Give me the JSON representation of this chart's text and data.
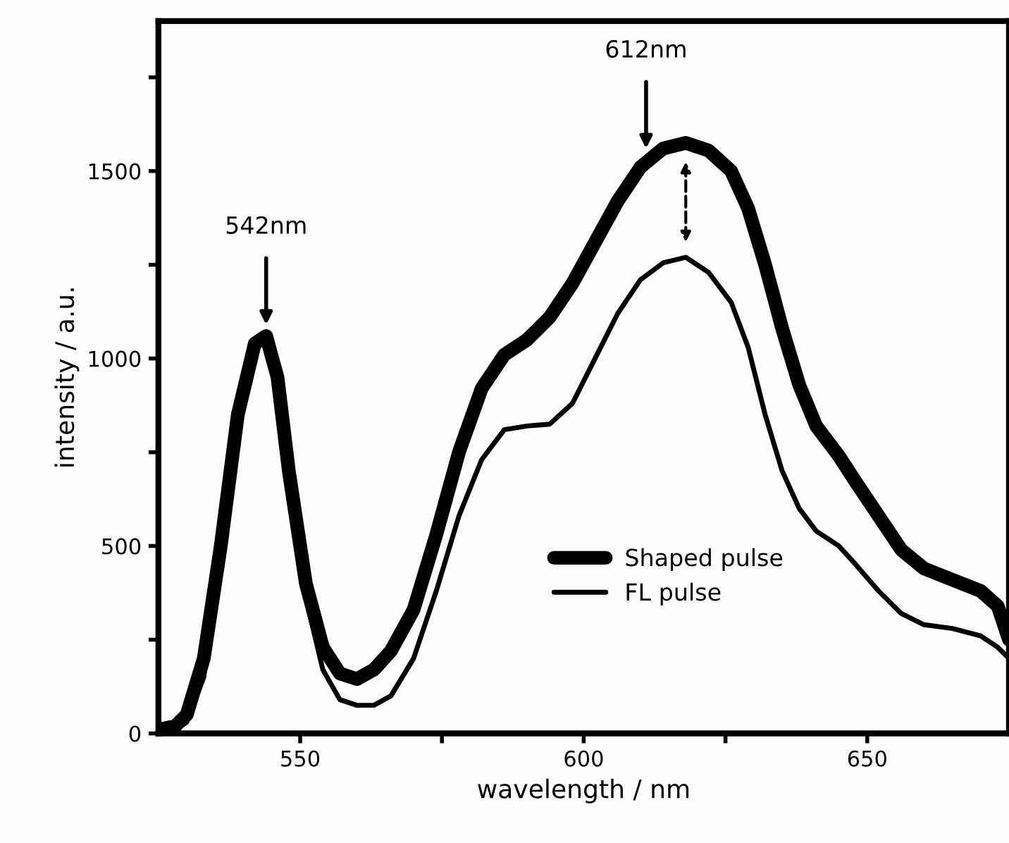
{
  "chart_data": {
    "type": "line",
    "xlabel": "wavelength / nm",
    "ylabel": "intensity / a.u.",
    "x": [
      525,
      528,
      530,
      533,
      536,
      539,
      542,
      544,
      546,
      548,
      551,
      554,
      557,
      560,
      563,
      566,
      570,
      574,
      578,
      582,
      586,
      590,
      594,
      598,
      602,
      606,
      610,
      614,
      618,
      622,
      626,
      629,
      632,
      635,
      638,
      641,
      645,
      648,
      652,
      656,
      660,
      665,
      670,
      673,
      675
    ],
    "series": [
      {
        "name": "Shaped pulse",
        "color": "#000000",
        "values": [
          10,
          20,
          50,
          200,
          500,
          850,
          1040,
          1060,
          950,
          700,
          400,
          230,
          160,
          145,
          170,
          220,
          330,
          530,
          750,
          920,
          1010,
          1050,
          1110,
          1200,
          1310,
          1420,
          1510,
          1560,
          1575,
          1555,
          1500,
          1400,
          1250,
          1080,
          930,
          820,
          740,
          670,
          580,
          490,
          440,
          410,
          380,
          340,
          250
        ]
      },
      {
        "name": "FL pulse",
        "color": "#000000",
        "values": [
          5,
          10,
          30,
          150,
          480,
          840,
          1030,
          1050,
          920,
          680,
          360,
          170,
          90,
          75,
          75,
          100,
          200,
          380,
          580,
          730,
          810,
          820,
          825,
          880,
          1000,
          1120,
          1210,
          1255,
          1270,
          1230,
          1150,
          1030,
          850,
          700,
          600,
          540,
          500,
          450,
          380,
          320,
          290,
          280,
          260,
          230,
          200
        ]
      }
    ],
    "xlim": [
      525,
      675
    ],
    "ylim": [
      0,
      1900
    ],
    "xticks": [
      550,
      {
        "value": 575,
        "label": null
      },
      600,
      {
        "value": 625,
        "label": null
      },
      650
    ],
    "yticks": [
      0,
      {
        "value": 250,
        "label": null
      },
      500,
      {
        "value": 750,
        "label": null
      },
      1000,
      {
        "value": 1250,
        "label": null
      },
      1500,
      {
        "value": 1750,
        "label": null
      }
    ],
    "annotations": [
      {
        "text": "542nm",
        "x": 544,
        "y": 1090
      },
      {
        "text": "612nm",
        "x": 611,
        "y": 1560
      }
    ],
    "legend": "lower center",
    "marker": "none",
    "line_style": "solid"
  }
}
